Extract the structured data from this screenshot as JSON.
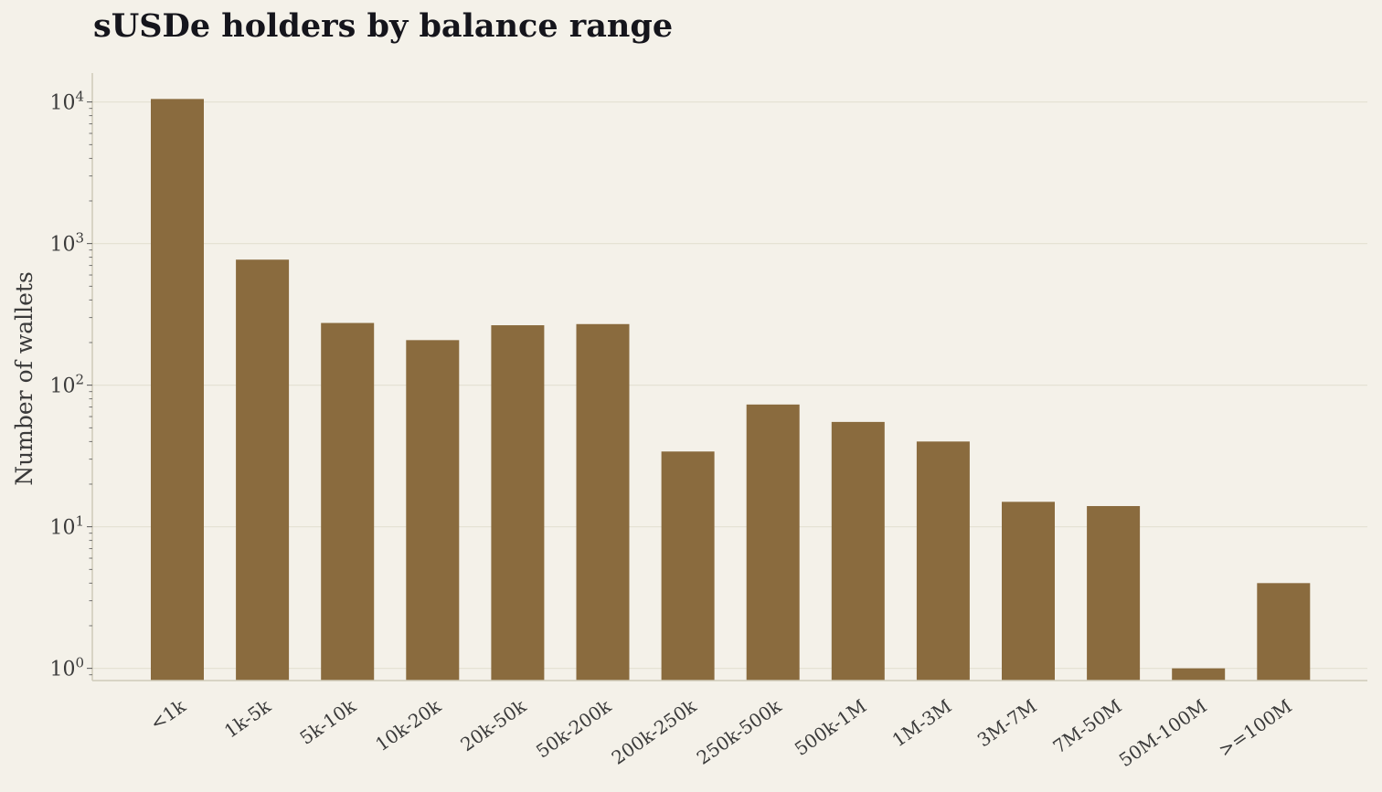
{
  "chart_data": {
    "type": "bar",
    "title": "sUSDe holders by balance range",
    "xlabel": "",
    "ylabel": "Number of wallets",
    "yscale": "log",
    "ylim": [
      0.82,
      16000
    ],
    "grid": "horizontal",
    "categories": [
      "<1k",
      "1k-5k",
      "5k-10k",
      "10k-20k",
      "20k-50k",
      "50k-200k",
      "200k-250k",
      "250k-500k",
      "500k-1M",
      "1M-3M",
      "3M-7M",
      "7M-50M",
      "50M-100M",
      ">=100M"
    ],
    "values": [
      10500,
      770,
      275,
      208,
      265,
      270,
      34,
      73,
      55,
      40,
      15,
      14,
      1,
      4
    ],
    "y_ticks": [
      {
        "value": 1,
        "base": "10",
        "exp": "0"
      },
      {
        "value": 10,
        "base": "10",
        "exp": "1"
      },
      {
        "value": 100,
        "base": "10",
        "exp": "2"
      },
      {
        "value": 1000,
        "base": "10",
        "exp": "3"
      },
      {
        "value": 10000,
        "base": "10",
        "exp": "4"
      }
    ],
    "colors": {
      "bar": "#8a6b3e",
      "background": "#f4f1e9",
      "grid": "#e5e2d4",
      "axis": "#cfcab9",
      "text": "#3a3a3a",
      "title": "#15151c"
    }
  }
}
